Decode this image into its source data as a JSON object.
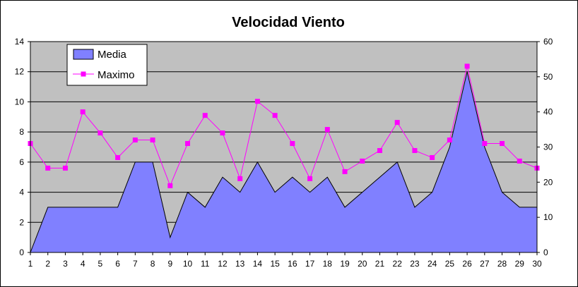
{
  "chart_data": {
    "type": "area",
    "title": "Velocidad Viento",
    "x": [
      1,
      2,
      3,
      4,
      5,
      6,
      7,
      8,
      9,
      10,
      11,
      12,
      13,
      14,
      15,
      16,
      17,
      18,
      19,
      20,
      21,
      22,
      23,
      24,
      25,
      26,
      27,
      28,
      29,
      30
    ],
    "ylim_left": [
      0,
      14
    ],
    "yticks_left": [
      0,
      2,
      4,
      6,
      8,
      10,
      12,
      14
    ],
    "ylim_right": [
      0,
      60
    ],
    "yticks_right": [
      0,
      10,
      20,
      30,
      40,
      50,
      60
    ],
    "grid": true,
    "legend_position": "top-left",
    "series": [
      {
        "name": "Media",
        "type": "area",
        "axis": "left",
        "color": "#8080ff",
        "values": [
          0,
          3,
          3,
          3,
          3,
          3,
          6,
          6,
          1,
          4,
          3,
          5,
          4,
          6,
          4,
          5,
          4,
          5,
          3,
          4,
          5,
          6,
          3,
          4,
          7,
          12,
          7,
          4,
          3,
          3
        ]
      },
      {
        "name": "Maximo",
        "type": "line",
        "axis": "right",
        "color": "#ff00ff",
        "values": [
          31,
          24,
          24,
          40,
          34,
          27,
          32,
          32,
          19,
          31,
          39,
          34,
          21,
          43,
          39,
          31,
          21,
          35,
          23,
          26,
          29,
          37,
          29,
          27,
          32,
          53,
          31,
          31,
          26,
          24
        ]
      }
    ]
  }
}
